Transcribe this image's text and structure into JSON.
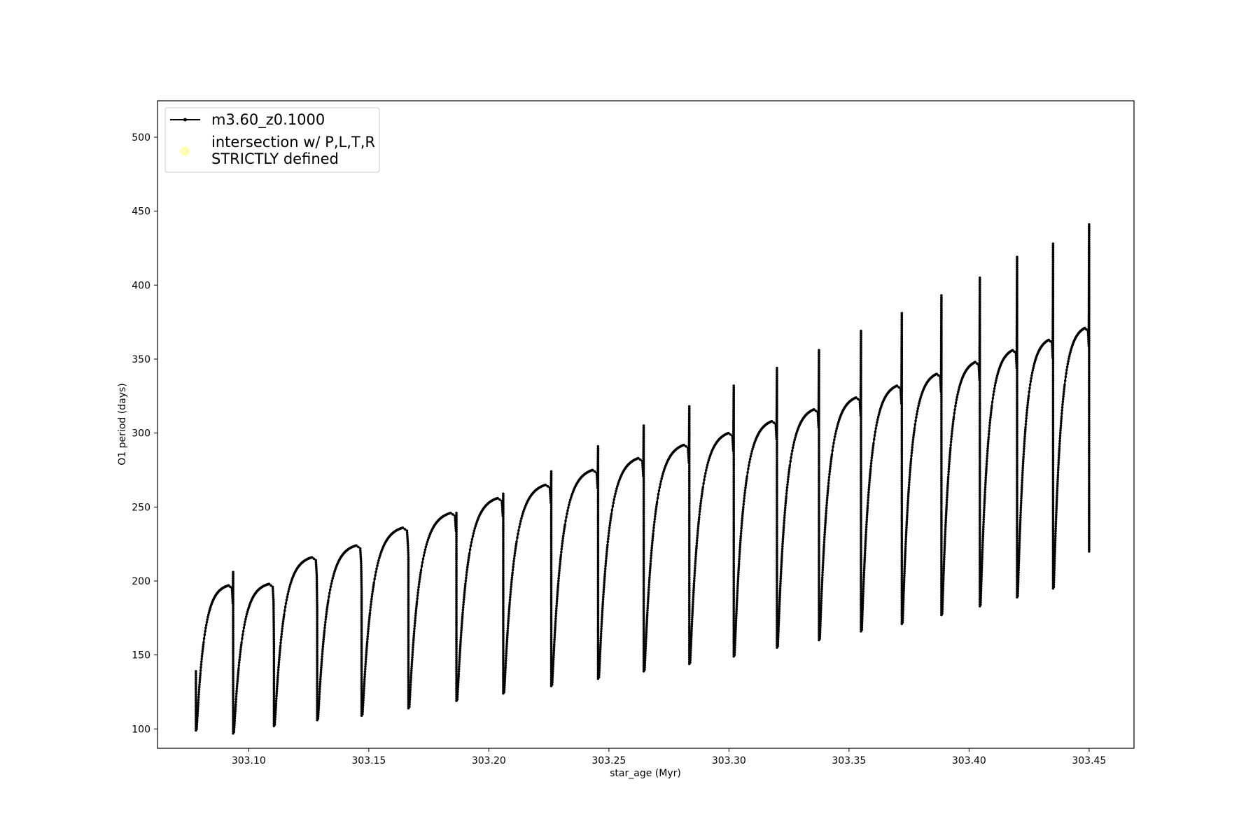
{
  "chart_data": {
    "type": "line",
    "xlabel": "star_age (Myr)",
    "ylabel": "O1 period (days)",
    "xlim": [
      303.062,
      303.4687
    ],
    "ylim": [
      86.9,
      524.6
    ],
    "xticks": [
      "303.10",
      "303.15",
      "303.20",
      "303.25",
      "303.30",
      "303.35",
      "303.40",
      "303.45"
    ],
    "xtick_values": [
      303.1,
      303.15,
      303.2,
      303.25,
      303.3,
      303.35,
      303.4,
      303.45
    ],
    "yticks": [
      "100",
      "150",
      "200",
      "250",
      "300",
      "350",
      "400",
      "450",
      "500"
    ],
    "ytick_values": [
      100,
      150,
      200,
      250,
      300,
      350,
      400,
      450,
      500
    ],
    "grid": false,
    "legend": {
      "placement": "upper-left",
      "entries": [
        {
          "label": "m3.60_z0.1000",
          "style": "line-with-dots",
          "color": "#000000"
        },
        {
          "label_line1": "intersection w/ P,L,T,R",
          "label_line2": "STRICTLY defined",
          "style": "marker",
          "color": "#ffffb3"
        }
      ]
    },
    "series": [
      {
        "name": "m3.60_z0.1000",
        "color": "#000000",
        "cycle_start_age": 303.078,
        "cycles": [
          {
            "start_x": 303.078,
            "end_x": 303.0935,
            "min": 99,
            "max": 197,
            "start_spike": 139,
            "end_spike": 206
          },
          {
            "start_x": 303.0935,
            "end_x": 303.1105,
            "min": 97,
            "max": 198,
            "end_spike": 156
          },
          {
            "start_x": 303.1105,
            "end_x": 303.1285,
            "min": 102,
            "max": 216,
            "end_spike": 181
          },
          {
            "start_x": 303.1285,
            "end_x": 303.147,
            "min": 106,
            "max": 224,
            "end_spike": 193
          },
          {
            "start_x": 303.147,
            "end_x": 303.1665,
            "min": 109,
            "max": 236,
            "end_spike": 216
          },
          {
            "start_x": 303.1665,
            "end_x": 303.1865,
            "min": 114,
            "max": 246,
            "end_spike": 246
          },
          {
            "start_x": 303.1865,
            "end_x": 303.206,
            "min": 119,
            "max": 256,
            "end_spike": 259
          },
          {
            "start_x": 303.206,
            "end_x": 303.226,
            "min": 124,
            "max": 265,
            "end_spike": 274
          },
          {
            "start_x": 303.226,
            "end_x": 303.2455,
            "min": 129,
            "max": 275,
            "end_spike": 291
          },
          {
            "start_x": 303.2455,
            "end_x": 303.2645,
            "min": 134,
            "max": 283,
            "end_spike": 305
          },
          {
            "start_x": 303.2645,
            "end_x": 303.2835,
            "min": 139,
            "max": 292,
            "end_spike": 318
          },
          {
            "start_x": 303.2835,
            "end_x": 303.302,
            "min": 144,
            "max": 300,
            "end_spike": 332
          },
          {
            "start_x": 303.302,
            "end_x": 303.32,
            "min": 149,
            "max": 308,
            "end_spike": 344
          },
          {
            "start_x": 303.32,
            "end_x": 303.3375,
            "min": 155,
            "max": 316,
            "end_spike": 356
          },
          {
            "start_x": 303.3375,
            "end_x": 303.355,
            "min": 160,
            "max": 324,
            "end_spike": 369
          },
          {
            "start_x": 303.355,
            "end_x": 303.372,
            "min": 166,
            "max": 332,
            "end_spike": 381
          },
          {
            "start_x": 303.372,
            "end_x": 303.3885,
            "min": 171,
            "max": 340,
            "end_spike": 393
          },
          {
            "start_x": 303.3885,
            "end_x": 303.4045,
            "min": 177,
            "max": 348,
            "end_spike": 405
          },
          {
            "start_x": 303.4045,
            "end_x": 303.42,
            "min": 183,
            "max": 356,
            "end_spike": 419
          },
          {
            "start_x": 303.42,
            "end_x": 303.435,
            "min": 189,
            "max": 363,
            "end_spike": 428
          },
          {
            "start_x": 303.435,
            "end_x": 303.45,
            "min": 195,
            "max": 371,
            "end_spike": 441,
            "final_value": 257
          }
        ]
      }
    ]
  }
}
